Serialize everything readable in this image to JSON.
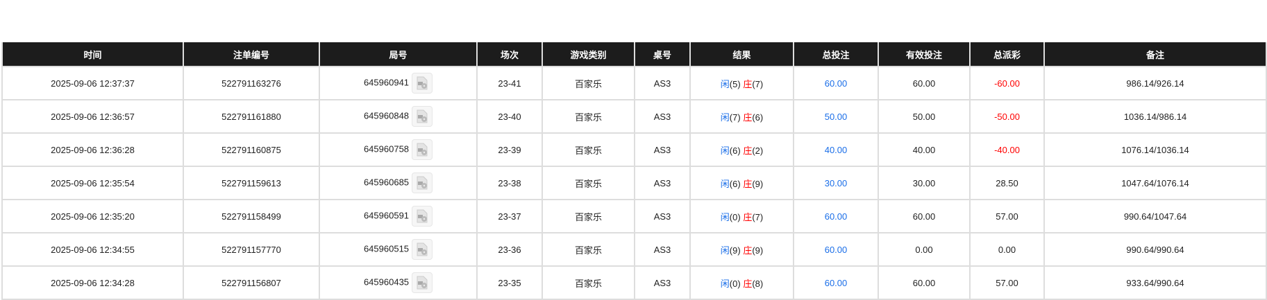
{
  "columns": [
    "时间",
    "注单编号",
    "局号",
    "场次",
    "游戏类别",
    "桌号",
    "结果",
    "总投注",
    "有效投注",
    "总派彩",
    "备注"
  ],
  "colors": {
    "header_bg": "#1c1c1c",
    "blue": "#1a6ee8",
    "red": "#ff0000"
  },
  "result_labels": {
    "player": "闲",
    "banker": "庄"
  },
  "rows": [
    {
      "time": "2025-09-06 12:37:37",
      "bet_id": "522791163276",
      "round": "645960941",
      "session": "23-41",
      "game": "百家乐",
      "table": "AS3",
      "player": "(5)",
      "banker": "(7)",
      "total_bet": "60.00",
      "valid_bet": "60.00",
      "payout": "-60.00",
      "payout_negative": true,
      "note": "986.14/926.14"
    },
    {
      "time": "2025-09-06 12:36:57",
      "bet_id": "522791161880",
      "round": "645960848",
      "session": "23-40",
      "game": "百家乐",
      "table": "AS3",
      "player": "(7)",
      "banker": "(6)",
      "total_bet": "50.00",
      "valid_bet": "50.00",
      "payout": "-50.00",
      "payout_negative": true,
      "note": "1036.14/986.14"
    },
    {
      "time": "2025-09-06 12:36:28",
      "bet_id": "522791160875",
      "round": "645960758",
      "session": "23-39",
      "game": "百家乐",
      "table": "AS3",
      "player": "(6)",
      "banker": "(2)",
      "total_bet": "40.00",
      "valid_bet": "40.00",
      "payout": "-40.00",
      "payout_negative": true,
      "note": "1076.14/1036.14"
    },
    {
      "time": "2025-09-06 12:35:54",
      "bet_id": "522791159613",
      "round": "645960685",
      "session": "23-38",
      "game": "百家乐",
      "table": "AS3",
      "player": "(6)",
      "banker": "(9)",
      "total_bet": "30.00",
      "valid_bet": "30.00",
      "payout": "28.50",
      "payout_negative": false,
      "note": "1047.64/1076.14"
    },
    {
      "time": "2025-09-06 12:35:20",
      "bet_id": "522791158499",
      "round": "645960591",
      "session": "23-37",
      "game": "百家乐",
      "table": "AS3",
      "player": "(0)",
      "banker": "(7)",
      "total_bet": "60.00",
      "valid_bet": "60.00",
      "payout": "57.00",
      "payout_negative": false,
      "note": "990.64/1047.64"
    },
    {
      "time": "2025-09-06 12:34:55",
      "bet_id": "522791157770",
      "round": "645960515",
      "session": "23-36",
      "game": "百家乐",
      "table": "AS3",
      "player": "(9)",
      "banker": "(9)",
      "total_bet": "60.00",
      "valid_bet": "0.00",
      "payout": "0.00",
      "payout_negative": false,
      "note": "990.64/990.64"
    },
    {
      "time": "2025-09-06 12:34:28",
      "bet_id": "522791156807",
      "round": "645960435",
      "session": "23-35",
      "game": "百家乐",
      "table": "AS3",
      "player": "(0)",
      "banker": "(8)",
      "total_bet": "60.00",
      "valid_bet": "60.00",
      "payout": "57.00",
      "payout_negative": false,
      "note": "933.64/990.64"
    }
  ]
}
